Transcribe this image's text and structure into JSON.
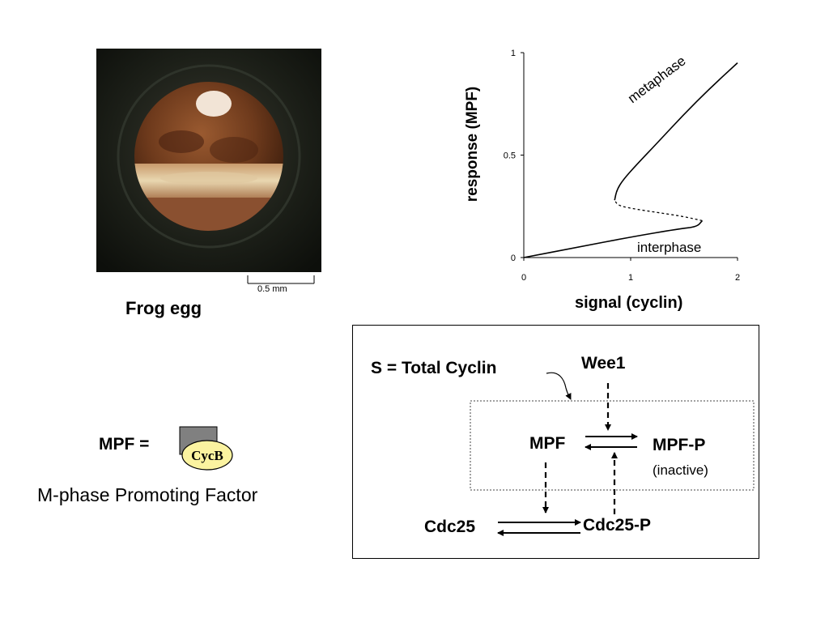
{
  "egg_panel": {
    "scale_bar_label": "0.5 mm",
    "caption": "Frog egg"
  },
  "mpf_panel": {
    "equation_label": "MPF =",
    "cycb_label": "CycB",
    "full_name": "M-phase Promoting Factor"
  },
  "chart_data": {
    "type": "line",
    "xlabel": "signal (cyclin)",
    "ylabel": "response (MPF)",
    "xlim": [
      0,
      2
    ],
    "ylim": [
      0,
      1
    ],
    "xticks": [
      "0",
      "1",
      "2"
    ],
    "yticks": [
      "0",
      "0.5",
      "1"
    ],
    "annotations": [
      "metaphase",
      "interphase"
    ],
    "series": [
      {
        "name": "interphase",
        "style": "solid",
        "points": [
          [
            0,
            0
          ],
          [
            0.5,
            0.05
          ],
          [
            1.0,
            0.1
          ],
          [
            1.45,
            0.14
          ],
          [
            1.62,
            0.15
          ],
          [
            1.67,
            0.18
          ]
        ]
      },
      {
        "name": "unstable",
        "style": "dashed",
        "points": [
          [
            1.67,
            0.18
          ],
          [
            1.5,
            0.2
          ],
          [
            1.25,
            0.22
          ],
          [
            1.0,
            0.24
          ],
          [
            0.88,
            0.255
          ],
          [
            0.85,
            0.28
          ]
        ]
      },
      {
        "name": "metaphase",
        "style": "solid",
        "points": [
          [
            0.85,
            0.28
          ],
          [
            0.87,
            0.33
          ],
          [
            0.93,
            0.38
          ],
          [
            1.05,
            0.45
          ],
          [
            1.25,
            0.56
          ],
          [
            1.5,
            0.7
          ],
          [
            1.75,
            0.83
          ],
          [
            2.0,
            0.95
          ]
        ]
      }
    ]
  },
  "network": {
    "s_label": "S = Total Cyclin",
    "wee1": "Wee1",
    "mpf": "MPF",
    "mpf_p": "MPF-P",
    "inactive": "(inactive)",
    "cdc25": "Cdc25",
    "cdc25_p": "Cdc25-P"
  }
}
